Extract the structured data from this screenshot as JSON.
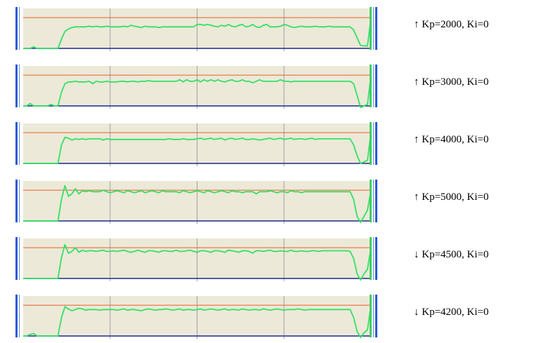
{
  "colors": {
    "background": "#ece9d8",
    "grid": "#a0a0a0",
    "setpoint": "#e8602a",
    "baseline": "#1c2a8c",
    "response": "#33e066",
    "border_blue": "#2a5ad6",
    "border_green": "#3cd060"
  },
  "icons": {
    "up": "up-arrow-icon",
    "down": "down-arrow-icon"
  },
  "chart_data": [
    {
      "type": "line",
      "title": "",
      "arrow": "↑",
      "label": "Kp=2000, Ki=0",
      "xlim": [
        0,
        100
      ],
      "ylim": [
        0,
        1.3
      ],
      "setpoint": 1.0,
      "xgrid": [
        25,
        50,
        75
      ],
      "grid": true,
      "y": [
        0,
        0,
        0,
        0.05,
        0,
        0,
        0,
        0,
        0,
        0,
        0,
        0.3,
        0.55,
        0.63,
        0.68,
        0.7,
        0.7,
        0.7,
        0.7,
        0.72,
        0.7,
        0.72,
        0.7,
        0.7,
        0.72,
        0.7,
        0.7,
        0.7,
        0.7,
        0.72,
        0.7,
        0.75,
        0.72,
        0.7,
        0.68,
        0.72,
        0.7,
        0.7,
        0.7,
        0.68,
        0.7,
        0.7,
        0.7,
        0.7,
        0.7,
        0.7,
        0.7,
        0.7,
        0.7,
        0.7,
        0.78,
        0.78,
        0.75,
        0.78,
        0.75,
        0.72,
        0.7,
        0.75,
        0.72,
        0.78,
        0.72,
        0.7,
        0.75,
        0.78,
        0.7,
        0.72,
        0.78,
        0.7,
        0.68,
        0.75,
        0.78,
        0.7,
        0.7,
        0.7,
        0.72,
        0.78,
        0.75,
        0.7,
        0.68,
        0.7,
        0.72,
        0.7,
        0.7,
        0.7,
        0.72,
        0.7,
        0.7,
        0.7,
        0.72,
        0.7,
        0.7,
        0.7,
        0.7,
        0.7,
        0.7,
        0.6,
        0.35,
        0.1,
        0.08,
        0.08,
        1.0
      ]
    },
    {
      "type": "line",
      "title": "",
      "arrow": "↑",
      "label": "Kp=3000, Ki=0",
      "xlim": [
        0,
        100
      ],
      "ylim": [
        0,
        1.3
      ],
      "setpoint": 1.0,
      "xgrid": [
        25,
        50,
        75
      ],
      "grid": true,
      "y": [
        0,
        0,
        0.08,
        0,
        0,
        0,
        0,
        0,
        0.05,
        0,
        0,
        0.45,
        0.72,
        0.78,
        0.78,
        0.8,
        0.78,
        0.78,
        0.78,
        0.8,
        0.72,
        0.8,
        0.78,
        0.78,
        0.8,
        0.78,
        0.78,
        0.78,
        0.8,
        0.8,
        0.78,
        0.8,
        0.8,
        0.78,
        0.8,
        0.8,
        0.82,
        0.8,
        0.8,
        0.8,
        0.8,
        0.8,
        0.8,
        0.8,
        0.8,
        0.85,
        0.78,
        0.85,
        0.8,
        0.8,
        0.85,
        0.78,
        0.85,
        0.8,
        0.85,
        0.8,
        0.85,
        0.8,
        0.78,
        0.82,
        0.85,
        0.8,
        0.8,
        0.85,
        0.8,
        0.8,
        0.75,
        0.8,
        0.85,
        0.8,
        0.8,
        0.8,
        0.8,
        0.8,
        0.85,
        0.8,
        0.8,
        0.78,
        0.8,
        0.8,
        0.8,
        0.8,
        0.8,
        0.8,
        0.8,
        0.8,
        0.8,
        0.8,
        0.8,
        0.8,
        0.8,
        0.8,
        0.8,
        0.8,
        0.8,
        0.72,
        0.35,
        -0.05,
        0,
        0.05,
        1.0
      ]
    },
    {
      "type": "line",
      "title": "",
      "arrow": "↑",
      "label": "Kp=4000, Ki=0",
      "xlim": [
        0,
        100
      ],
      "ylim": [
        0,
        1.3
      ],
      "setpoint": 1.0,
      "xgrid": [
        25,
        50,
        75
      ],
      "grid": true,
      "y": [
        0,
        0,
        0,
        0,
        0,
        0,
        0,
        0,
        0,
        0,
        0,
        0.6,
        0.85,
        0.82,
        0.76,
        0.8,
        0.78,
        0.8,
        0.78,
        0.8,
        0.8,
        0.8,
        0.8,
        0.76,
        0.8,
        0.78,
        0.78,
        0.78,
        0.78,
        0.78,
        0.78,
        0.78,
        0.78,
        0.78,
        0.78,
        0.78,
        0.78,
        0.78,
        0.78,
        0.78,
        0.78,
        0.78,
        0.8,
        0.78,
        0.78,
        0.78,
        0.8,
        0.78,
        0.78,
        0.78,
        0.8,
        0.82,
        0.78,
        0.8,
        0.82,
        0.78,
        0.8,
        0.82,
        0.76,
        0.8,
        0.82,
        0.78,
        0.8,
        0.82,
        0.78,
        0.78,
        0.8,
        0.78,
        0.76,
        0.78,
        0.8,
        0.82,
        0.78,
        0.8,
        0.82,
        0.78,
        0.8,
        0.82,
        0.78,
        0.8,
        0.8,
        0.78,
        0.8,
        0.82,
        0.78,
        0.8,
        0.8,
        0.8,
        0.8,
        0.8,
        0.8,
        0.8,
        0.8,
        0.8,
        0.8,
        0.6,
        0.25,
        0,
        0.05,
        0.1,
        1.0
      ]
    },
    {
      "type": "line",
      "title": "",
      "arrow": "↑",
      "label": "Kp=5000, Ki=0",
      "xlim": [
        0,
        100
      ],
      "ylim": [
        0,
        1.3
      ],
      "setpoint": 1.0,
      "xgrid": [
        25,
        50,
        75
      ],
      "grid": true,
      "y": [
        0,
        0,
        0,
        0,
        0,
        0,
        0,
        0,
        0,
        0,
        0,
        0.7,
        1.15,
        0.8,
        0.88,
        1.05,
        0.88,
        0.98,
        0.95,
        0.98,
        0.95,
        0.95,
        0.95,
        1.0,
        0.95,
        0.92,
        0.95,
        0.98,
        0.95,
        0.92,
        0.98,
        0.95,
        0.92,
        0.95,
        0.98,
        0.92,
        0.95,
        0.98,
        0.95,
        0.92,
        0.98,
        0.95,
        0.95,
        0.95,
        0.95,
        0.92,
        0.98,
        0.95,
        0.92,
        0.95,
        0.98,
        0.95,
        0.92,
        0.98,
        0.95,
        0.92,
        0.95,
        0.98,
        0.95,
        0.92,
        0.98,
        0.95,
        0.95,
        0.92,
        0.95,
        0.95,
        0.95,
        0.88,
        0.95,
        0.95,
        0.95,
        0.98,
        0.95,
        0.92,
        0.95,
        0.95,
        0.92,
        0.98,
        0.95,
        0.95,
        0.92,
        0.95,
        0.95,
        0.95,
        0.95,
        0.95,
        0.95,
        0.95,
        0.95,
        0.95,
        0.95,
        0.95,
        0.95,
        0.95,
        0.95,
        0.7,
        0.15,
        -0.05,
        0.15,
        0.35,
        1.0
      ]
    },
    {
      "type": "line",
      "title": "",
      "arrow": "↓",
      "label": "Kp=4500, Ki=0",
      "xlim": [
        0,
        100
      ],
      "ylim": [
        0,
        1.3
      ],
      "setpoint": 1.0,
      "xgrid": [
        25,
        50,
        75
      ],
      "grid": true,
      "y": [
        0,
        0,
        0,
        0,
        0,
        0,
        0,
        0,
        0,
        0,
        0,
        0.68,
        1.1,
        0.82,
        0.88,
        1.0,
        0.85,
        0.92,
        0.88,
        0.9,
        0.9,
        0.88,
        0.9,
        0.92,
        0.88,
        0.88,
        0.9,
        0.88,
        0.9,
        0.92,
        0.88,
        0.85,
        0.88,
        0.92,
        0.88,
        0.85,
        0.9,
        0.9,
        0.88,
        0.85,
        0.9,
        0.9,
        0.88,
        0.88,
        0.92,
        0.88,
        0.88,
        0.9,
        0.92,
        0.88,
        0.85,
        0.9,
        0.9,
        0.88,
        0.85,
        0.9,
        0.9,
        0.88,
        0.85,
        0.92,
        0.9,
        0.88,
        0.85,
        0.9,
        0.9,
        0.88,
        0.82,
        0.9,
        0.9,
        0.88,
        0.9,
        0.92,
        0.88,
        0.88,
        0.9,
        0.88,
        0.88,
        0.92,
        0.88,
        0.88,
        0.9,
        0.88,
        0.88,
        0.9,
        0.9,
        0.88,
        0.9,
        0.9,
        0.9,
        0.9,
        0.9,
        0.9,
        0.9,
        0.9,
        0.88,
        0.65,
        0.15,
        -0.05,
        0.15,
        0.3,
        1.0
      ]
    },
    {
      "type": "line",
      "title": "",
      "arrow": "↓",
      "label": "Kp=4200, Ki=0",
      "xlim": [
        0,
        100
      ],
      "ylim": [
        0,
        1.3
      ],
      "setpoint": 1.0,
      "xgrid": [
        25,
        50,
        75
      ],
      "grid": true,
      "y": [
        0,
        0,
        0.05,
        0.08,
        0,
        0,
        0,
        0,
        0,
        0,
        0,
        0.6,
        0.95,
        0.88,
        0.82,
        0.86,
        0.9,
        0.88,
        0.84,
        0.86,
        0.86,
        0.86,
        0.84,
        0.86,
        0.86,
        0.86,
        0.86,
        0.84,
        0.86,
        0.88,
        0.84,
        0.86,
        0.86,
        0.84,
        0.82,
        0.86,
        0.88,
        0.86,
        0.84,
        0.86,
        0.86,
        0.88,
        0.86,
        0.84,
        0.86,
        0.88,
        0.84,
        0.86,
        0.86,
        0.84,
        0.86,
        0.88,
        0.84,
        0.86,
        0.88,
        0.86,
        0.84,
        0.86,
        0.88,
        0.84,
        0.86,
        0.86,
        0.84,
        0.88,
        0.86,
        0.84,
        0.86,
        0.86,
        0.84,
        0.88,
        0.86,
        0.84,
        0.86,
        0.88,
        0.86,
        0.84,
        0.86,
        0.86,
        0.86,
        0.88,
        0.86,
        0.84,
        0.86,
        0.86,
        0.86,
        0.86,
        0.86,
        0.86,
        0.86,
        0.86,
        0.86,
        0.86,
        0.86,
        0.86,
        0.86,
        0.6,
        0.15,
        -0.05,
        0.1,
        0.2,
        1.0
      ]
    }
  ]
}
